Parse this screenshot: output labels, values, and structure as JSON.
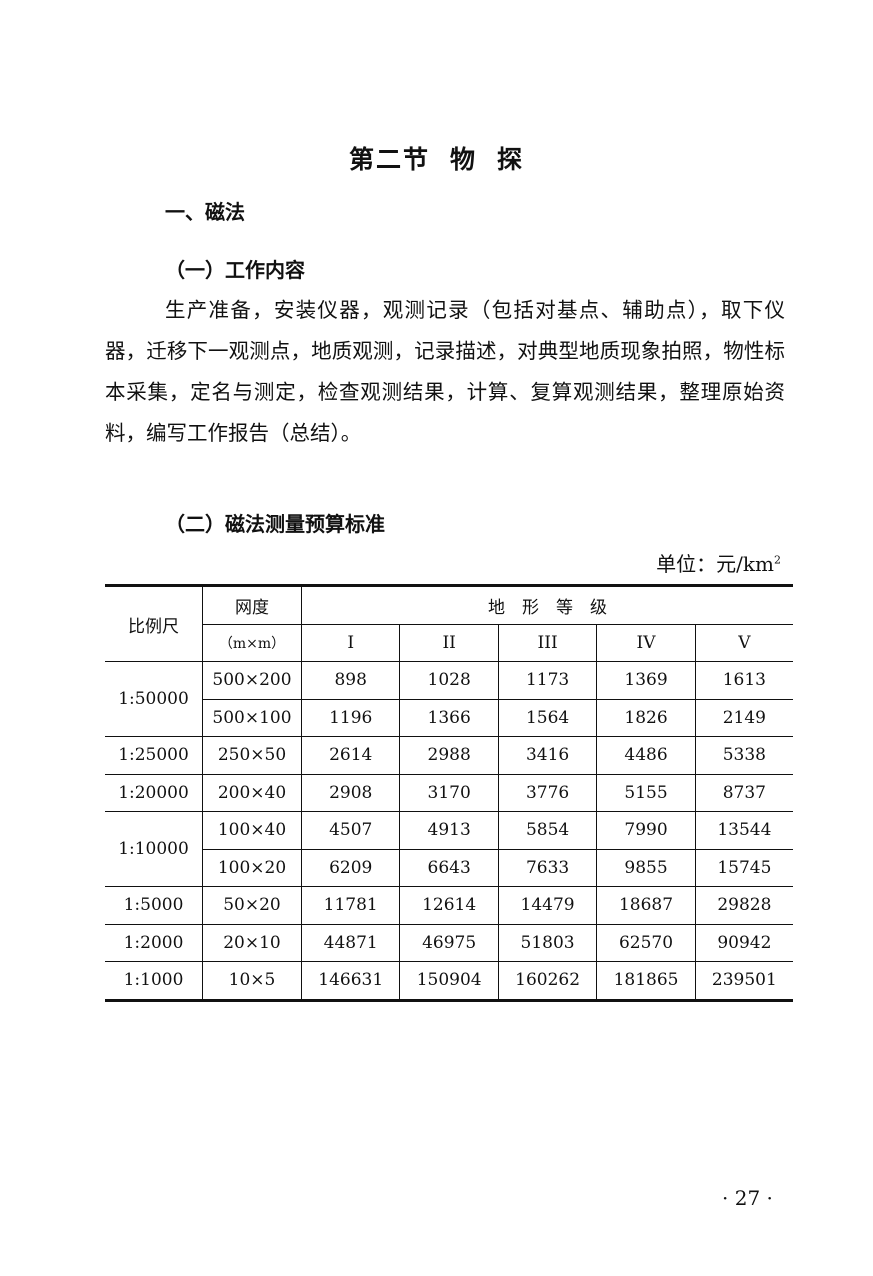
{
  "section_title": [
    "第二节",
    "物",
    "探"
  ],
  "heading1": "一、磁法",
  "heading2": "（一）工作内容",
  "paragraph": "生产准备，安装仪器，观测记录（包括对基点、辅助点），取下仪器，迁移下一观测点，地质观测，记录描述，对典型地质现象拍照，物性标本采集，定名与测定，检查观测结果，计算、复算观测结果，整理原始资料，编写工作报告（总结）。",
  "heading3": "（二）磁法测量预算标准",
  "unit": {
    "label": "单位：元/km",
    "superscript": "2"
  },
  "table": {
    "header": {
      "scale": "比例尺",
      "grid": "网度",
      "grid_unit": "（m×m）",
      "terrain": "地　形　等　级",
      "grades": [
        "I",
        "II",
        "III",
        "IV",
        "V"
      ]
    },
    "groups": [
      {
        "scale": "1:50000",
        "rows": [
          {
            "grid": "500×200",
            "values": [
              "898",
              "1028",
              "1173",
              "1369",
              "1613"
            ]
          },
          {
            "grid": "500×100",
            "values": [
              "1196",
              "1366",
              "1564",
              "1826",
              "2149"
            ]
          }
        ]
      },
      {
        "scale": "1:25000",
        "rows": [
          {
            "grid": "250×50",
            "values": [
              "2614",
              "2988",
              "3416",
              "4486",
              "5338"
            ]
          }
        ]
      },
      {
        "scale": "1:20000",
        "rows": [
          {
            "grid": "200×40",
            "values": [
              "2908",
              "3170",
              "3776",
              "5155",
              "8737"
            ]
          }
        ]
      },
      {
        "scale": "1:10000",
        "rows": [
          {
            "grid": "100×40",
            "values": [
              "4507",
              "4913",
              "5854",
              "7990",
              "13544"
            ]
          },
          {
            "grid": "100×20",
            "values": [
              "6209",
              "6643",
              "7633",
              "9855",
              "15745"
            ]
          }
        ]
      },
      {
        "scale": "1:5000",
        "rows": [
          {
            "grid": "50×20",
            "values": [
              "11781",
              "12614",
              "14479",
              "18687",
              "29828"
            ]
          }
        ]
      },
      {
        "scale": "1:2000",
        "rows": [
          {
            "grid": "20×10",
            "values": [
              "44871",
              "46975",
              "51803",
              "62570",
              "90942"
            ]
          }
        ]
      },
      {
        "scale": "1:1000",
        "rows": [
          {
            "grid": "10×5",
            "values": [
              "146631",
              "150904",
              "160262",
              "181865",
              "239501"
            ]
          }
        ]
      }
    ]
  },
  "page_number": "· 27 ·"
}
